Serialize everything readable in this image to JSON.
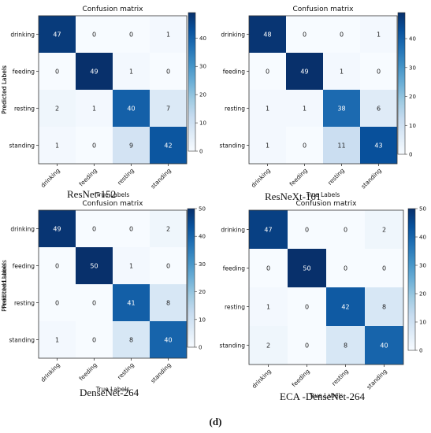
{
  "figure_label": "(d)",
  "chart_data": [
    {
      "type": "heatmap",
      "title": "Confusion matrix",
      "caption": "ResNet-152",
      "xlabel": "True Labels",
      "ylabel": "Predicted Labels",
      "x_categories": [
        "drinking",
        "feeding",
        "resting",
        "standing"
      ],
      "y_categories": [
        "drinking",
        "feeding",
        "resting",
        "standing"
      ],
      "values": [
        [
          47,
          0,
          0,
          1
        ],
        [
          0,
          49,
          1,
          0
        ],
        [
          2,
          1,
          40,
          7
        ],
        [
          1,
          0,
          9,
          42
        ]
      ],
      "colorbar": {
        "range": [
          0,
          49
        ],
        "ticks": [
          0,
          10,
          20,
          30,
          40
        ]
      },
      "colormap": "Blues"
    },
    {
      "type": "heatmap",
      "title": "Confusion matrix",
      "caption": "ResNeXt-101",
      "xlabel": "True Labels",
      "ylabel": "Predicted Labels",
      "x_categories": [
        "drinking",
        "feeding",
        "resting",
        "standing"
      ],
      "y_categories": [
        "drinking",
        "feeding",
        "resting",
        "standing"
      ],
      "values": [
        [
          48,
          0,
          0,
          1
        ],
        [
          0,
          49,
          1,
          0
        ],
        [
          1,
          1,
          38,
          6
        ],
        [
          1,
          0,
          11,
          43
        ]
      ],
      "colorbar": {
        "range": [
          0,
          49
        ],
        "ticks": [
          0,
          10,
          20,
          30,
          40
        ]
      },
      "colormap": "Blues"
    },
    {
      "type": "heatmap",
      "title": "Confusion matrix",
      "caption": "DenseNet-264",
      "xlabel": "True Labels",
      "ylabel": "Predicted Labels",
      "x_categories": [
        "drinking",
        "feeding",
        "resting",
        "standing"
      ],
      "y_categories": [
        "drinking",
        "feeding",
        "resting",
        "standing"
      ],
      "values": [
        [
          49,
          0,
          0,
          2
        ],
        [
          0,
          50,
          1,
          0
        ],
        [
          0,
          0,
          41,
          8
        ],
        [
          1,
          0,
          8,
          40
        ]
      ],
      "colorbar": {
        "range": [
          0,
          50
        ],
        "ticks": [
          0,
          10,
          20,
          30,
          40,
          50
        ]
      },
      "colormap": "Blues"
    },
    {
      "type": "heatmap",
      "title": "Confusion matrix",
      "caption": "ECA -DenseNet-264",
      "xlabel": "True Labels",
      "ylabel": "Predicted Labels",
      "x_categories": [
        "drinking",
        "feeding",
        "resting",
        "standing"
      ],
      "y_categories": [
        "drinking",
        "feeding",
        "resting",
        "standing"
      ],
      "values": [
        [
          47,
          0,
          0,
          2
        ],
        [
          0,
          50,
          0,
          0
        ],
        [
          1,
          0,
          42,
          8
        ],
        [
          2,
          0,
          8,
          40
        ]
      ],
      "colorbar": {
        "range": [
          0,
          50
        ],
        "ticks": [
          0,
          10,
          20,
          30,
          40,
          50
        ]
      },
      "colormap": "Blues"
    }
  ]
}
